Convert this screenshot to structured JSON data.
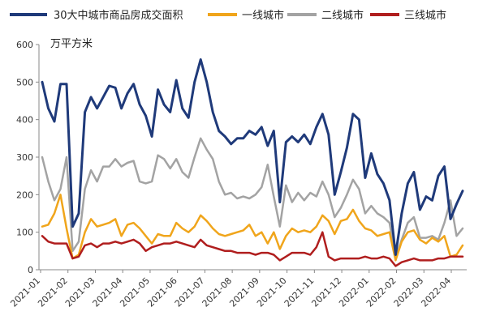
{
  "chart_data": {
    "type": "line",
    "ylabel": "万平方米",
    "ylim": [
      0,
      600
    ],
    "y_ticks": [
      0,
      100,
      200,
      300,
      400,
      500,
      600
    ],
    "x_tick_labels": [
      "2021-01",
      "2021-02",
      "2021-03",
      "2021-04",
      "2021-05",
      "2021-06",
      "2021-07",
      "2021-08",
      "2021-09",
      "2021-10",
      "2021-11",
      "2021-12",
      "2022-01",
      "2022-02",
      "2022-03",
      "2022-04"
    ],
    "grid": false,
    "legend_position": "top",
    "series": [
      {
        "name": "30大中城市商品房成交面积",
        "color": "#1f3a7a",
        "values": [
          500,
          430,
          395,
          495,
          495,
          115,
          150,
          420,
          460,
          430,
          460,
          490,
          485,
          430,
          470,
          495,
          440,
          410,
          355,
          480,
          440,
          420,
          505,
          430,
          405,
          500,
          560,
          500,
          420,
          370,
          355,
          335,
          350,
          350,
          370,
          360,
          380,
          330,
          370,
          180,
          340,
          355,
          340,
          360,
          335,
          380,
          415,
          360,
          200,
          260,
          325,
          415,
          400,
          245,
          310,
          255,
          230,
          185,
          40,
          150,
          230,
          260,
          160,
          195,
          185,
          250,
          275,
          135,
          175,
          210
        ]
      },
      {
        "name": "一线城市",
        "color": "#f0a51b",
        "values": [
          115,
          120,
          150,
          200,
          110,
          30,
          40,
          100,
          135,
          115,
          120,
          125,
          135,
          90,
          120,
          125,
          110,
          90,
          70,
          95,
          90,
          90,
          125,
          110,
          100,
          115,
          145,
          130,
          110,
          95,
          90,
          95,
          100,
          105,
          120,
          90,
          100,
          70,
          100,
          55,
          90,
          110,
          100,
          105,
          100,
          115,
          145,
          130,
          95,
          130,
          135,
          160,
          130,
          110,
          105,
          90,
          95,
          100,
          25,
          75,
          100,
          105,
          80,
          70,
          85,
          75,
          90,
          35,
          40,
          65
        ]
      },
      {
        "name": "二线城市",
        "color": "#a3a3a3",
        "values": [
          300,
          235,
          185,
          215,
          300,
          50,
          75,
          215,
          265,
          235,
          275,
          275,
          295,
          275,
          285,
          290,
          235,
          230,
          235,
          305,
          295,
          270,
          295,
          260,
          245,
          300,
          350,
          320,
          295,
          235,
          200,
          205,
          190,
          195,
          190,
          200,
          220,
          280,
          195,
          115,
          225,
          180,
          205,
          185,
          205,
          195,
          235,
          200,
          140,
          165,
          200,
          240,
          215,
          150,
          170,
          150,
          140,
          125,
          30,
          80,
          125,
          140,
          85,
          85,
          90,
          80,
          125,
          185,
          90,
          110
        ]
      },
      {
        "name": "三线城市",
        "color": "#b01e1e",
        "values": [
          90,
          75,
          70,
          70,
          70,
          30,
          35,
          65,
          70,
          60,
          70,
          70,
          75,
          70,
          75,
          80,
          70,
          50,
          60,
          65,
          70,
          70,
          75,
          70,
          65,
          60,
          80,
          65,
          60,
          55,
          50,
          50,
          45,
          45,
          45,
          40,
          45,
          45,
          40,
          25,
          35,
          45,
          45,
          45,
          40,
          60,
          100,
          35,
          25,
          30,
          30,
          30,
          30,
          35,
          30,
          30,
          35,
          30,
          10,
          20,
          25,
          30,
          25,
          25,
          25,
          30,
          30,
          35,
          35,
          35
        ]
      }
    ]
  }
}
